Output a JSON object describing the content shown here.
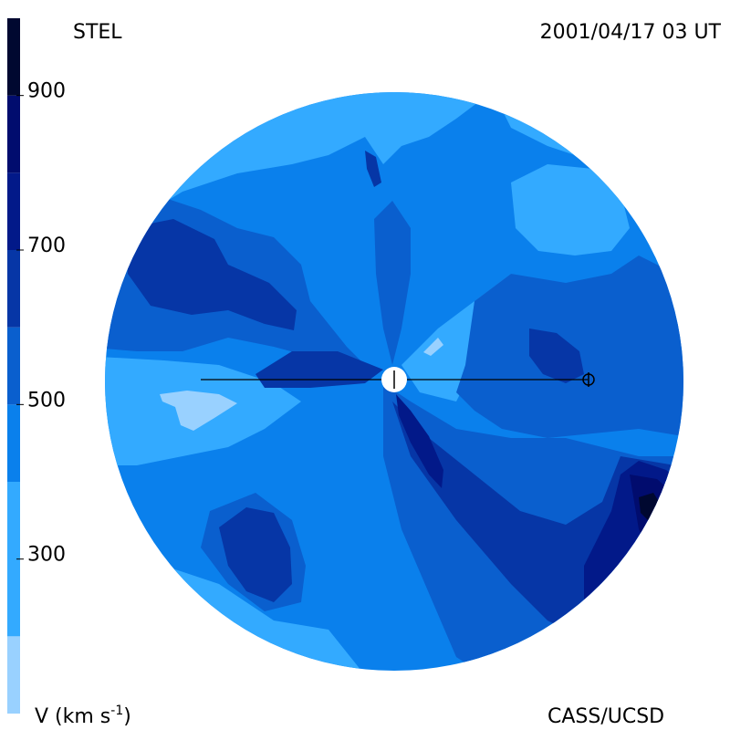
{
  "header": {
    "source": "STEL",
    "timestamp": "2001/04/17 03 UT"
  },
  "footer": {
    "credit": "CASS/UCSD",
    "unit_prefix": "V (km s",
    "unit_exp": "-1",
    "unit_suffix": ")"
  },
  "colorbar": {
    "min": 100,
    "max": 1000,
    "tick_values": [
      300,
      500,
      700,
      900
    ],
    "tick_labels": [
      "300",
      "500",
      "700",
      "900"
    ],
    "bands": [
      {
        "from": 100,
        "to": 200,
        "color": "#99d1ff"
      },
      {
        "from": 200,
        "to": 400,
        "color": "#33aaff"
      },
      {
        "from": 400,
        "to": 500,
        "color": "#0a80ec"
      },
      {
        "from": 500,
        "to": 600,
        "color": "#0a5fce"
      },
      {
        "from": 600,
        "to": 700,
        "color": "#0636a6"
      },
      {
        "from": 700,
        "to": 800,
        "color": "#021989"
      },
      {
        "from": 800,
        "to": 900,
        "color": "#010c6e"
      },
      {
        "from": 900,
        "to": 1000,
        "color": "#000830"
      }
    ]
  },
  "map": {
    "disk_color": "#0a80ec",
    "markers": {
      "sun": "sun-marker-icon",
      "earth": "earth-symbol-icon"
    }
  }
}
